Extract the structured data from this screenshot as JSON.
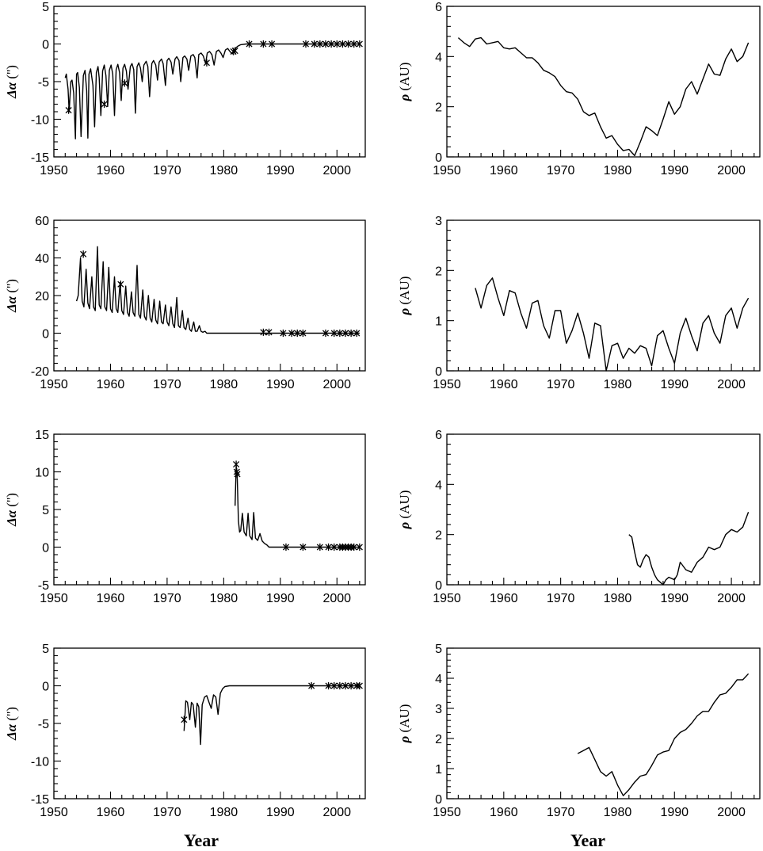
{
  "chart_data": [
    {
      "id": "p1",
      "type": "line",
      "ylabel_symbol": "Δα",
      "ylabel_unit": "('')",
      "xlim": [
        1950,
        2005
      ],
      "ylim": [
        -15,
        5
      ],
      "xticks": [
        1950,
        1960,
        1970,
        1980,
        1990,
        2000
      ],
      "yticks": [
        -15,
        -10,
        -5,
        0,
        5
      ],
      "x": [
        1952.0,
        1952.2,
        1952.5,
        1952.7,
        1953.0,
        1953.2,
        1953.5,
        1953.8,
        1954.0,
        1954.2,
        1954.5,
        1954.8,
        1955.2,
        1955.5,
        1955.8,
        1956.0,
        1956.2,
        1956.5,
        1956.9,
        1957.2,
        1957.5,
        1957.8,
        1958.0,
        1958.3,
        1958.6,
        1958.9,
        1959.2,
        1959.5,
        1959.8,
        1960.1,
        1960.4,
        1960.7,
        1961.0,
        1961.3,
        1961.6,
        1961.9,
        1962.2,
        1962.5,
        1962.8,
        1963.1,
        1963.5,
        1963.8,
        1964.1,
        1964.4,
        1964.7,
        1965.0,
        1965.3,
        1965.6,
        1965.9,
        1966.3,
        1966.6,
        1966.9,
        1967.3,
        1967.6,
        1968.0,
        1968.3,
        1968.6,
        1969.0,
        1969.3,
        1969.7,
        1970.0,
        1970.3,
        1970.7,
        1971.0,
        1971.4,
        1971.7,
        1972.1,
        1972.4,
        1972.8,
        1973.1,
        1973.5,
        1973.8,
        1974.2,
        1974.6,
        1974.9,
        1975.3,
        1975.6,
        1976.0,
        1976.4,
        1976.8,
        1977.1,
        1977.5,
        1977.9,
        1978.3,
        1978.7,
        1979.1,
        1979.5,
        1979.9,
        1980.3,
        1980.7,
        1981.1,
        1981.5,
        1982.0,
        1982.5,
        1983.0,
        1984.0,
        1986.0,
        1990.0,
        1995.0,
        2000.0,
        2004.0
      ],
      "y": [
        -4.5,
        -4.0,
        -6.0,
        -9.0,
        -5.0,
        -4.8,
        -6.5,
        -12.6,
        -4.0,
        -3.8,
        -5.8,
        -12.3,
        -4.2,
        -3.5,
        -6.2,
        -12.5,
        -4.0,
        -3.3,
        -5.5,
        -11.0,
        -3.8,
        -3.0,
        -4.5,
        -9.5,
        -3.6,
        -2.8,
        -4.2,
        -8.3,
        -3.5,
        -2.8,
        -4.0,
        -9.5,
        -3.4,
        -2.7,
        -3.8,
        -7.5,
        -3.2,
        -2.7,
        -3.6,
        -6.0,
        -3.0,
        -2.6,
        -3.4,
        -9.2,
        -3.0,
        -2.5,
        -3.2,
        -5.0,
        -2.8,
        -2.3,
        -3.0,
        -7.0,
        -2.6,
        -2.2,
        -2.8,
        -4.8,
        -2.4,
        -2.0,
        -2.6,
        -5.5,
        -2.2,
        -1.9,
        -2.4,
        -4.0,
        -2.0,
        -1.7,
        -2.2,
        -5.0,
        -1.8,
        -1.6,
        -2.0,
        -3.5,
        -1.6,
        -1.4,
        -1.8,
        -4.5,
        -1.4,
        -1.2,
        -1.6,
        -2.6,
        -1.2,
        -1.0,
        -1.4,
        -2.8,
        -1.0,
        -0.8,
        -1.2,
        -1.8,
        -0.8,
        -0.6,
        -1.0,
        -1.3,
        -0.6,
        -0.3,
        -0.1,
        0,
        0,
        0,
        0,
        0,
        0
      ],
      "markers": [
        [
          1952.6,
          -8.8
        ],
        [
          1958.9,
          -8.0
        ],
        [
          1962.5,
          -5.2
        ],
        [
          1977.0,
          -2.5
        ],
        [
          1981.7,
          -1.0
        ],
        [
          1982.0,
          -0.9
        ],
        [
          1984.5,
          0
        ],
        [
          1987.0,
          0
        ],
        [
          1988.5,
          0
        ],
        [
          1994.5,
          0
        ],
        [
          1996.0,
          0
        ],
        [
          1997.0,
          0
        ],
        [
          1998.0,
          0
        ],
        [
          1999.0,
          0
        ],
        [
          2000.0,
          0
        ],
        [
          2001.0,
          0
        ],
        [
          2002.0,
          0
        ],
        [
          2003.0,
          0
        ],
        [
          2004.0,
          0
        ]
      ]
    },
    {
      "id": "p2",
      "type": "line",
      "ylabel_symbol": "ρ",
      "ylabel_unit": "(AU)",
      "xlim": [
        1950,
        2005
      ],
      "ylim": [
        0,
        6
      ],
      "xticks": [
        1950,
        1960,
        1970,
        1980,
        1990,
        2000
      ],
      "yticks": [
        0,
        2,
        4,
        6
      ],
      "x": [
        1952.0,
        1953.0,
        1954.0,
        1955.0,
        1956.0,
        1957.0,
        1958.0,
        1959.0,
        1960.0,
        1961.0,
        1962.0,
        1963.0,
        1964.0,
        1965.0,
        1966.0,
        1967.0,
        1968.0,
        1969.0,
        1970.0,
        1971.0,
        1972.0,
        1973.0,
        1974.0,
        1975.0,
        1976.0,
        1977.0,
        1978.0,
        1979.0,
        1980.0,
        1981.0,
        1982.0,
        1983.0,
        1984.0,
        1985.0,
        1986.0,
        1987.0,
        1988.0,
        1989.0,
        1990.0,
        1991.0,
        1992.0,
        1993.0,
        1994.0,
        1995.0,
        1996.0,
        1997.0,
        1998.0,
        1999.0,
        2000.0,
        2001.0,
        2002.0,
        2003.0
      ],
      "y": [
        4.75,
        4.55,
        4.4,
        4.7,
        4.75,
        4.5,
        4.55,
        4.6,
        4.35,
        4.3,
        4.35,
        4.15,
        3.95,
        3.95,
        3.75,
        3.45,
        3.35,
        3.2,
        2.85,
        2.6,
        2.55,
        2.3,
        1.8,
        1.65,
        1.75,
        1.2,
        0.75,
        0.85,
        0.5,
        0.25,
        0.3,
        0.05,
        0.6,
        1.2,
        1.05,
        0.85,
        1.5,
        2.2,
        1.7,
        2.0,
        2.7,
        3.0,
        2.5,
        3.1,
        3.7,
        3.3,
        3.25,
        3.9,
        4.3,
        3.8,
        4.0,
        4.55
      ]
    },
    {
      "id": "p3",
      "type": "line",
      "ylabel_symbol": "Δα",
      "ylabel_unit": "('')",
      "xlim": [
        1950,
        2005
      ],
      "ylim": [
        -20,
        60
      ],
      "xticks": [
        1950,
        1960,
        1970,
        1980,
        1990,
        2000
      ],
      "yticks": [
        -20,
        0,
        20,
        40,
        60
      ],
      "x": [
        1954.0,
        1954.3,
        1954.7,
        1955.0,
        1955.3,
        1955.7,
        1956.0,
        1956.3,
        1956.7,
        1957.0,
        1957.3,
        1957.7,
        1958.0,
        1958.3,
        1958.7,
        1959.0,
        1959.3,
        1959.7,
        1960.0,
        1960.3,
        1960.7,
        1961.0,
        1961.3,
        1961.7,
        1962.0,
        1962.3,
        1962.7,
        1963.0,
        1963.3,
        1963.7,
        1964.0,
        1964.3,
        1964.7,
        1965.0,
        1965.3,
        1965.7,
        1966.0,
        1966.3,
        1966.7,
        1967.0,
        1967.3,
        1967.7,
        1968.0,
        1968.3,
        1968.7,
        1969.0,
        1969.3,
        1969.7,
        1970.0,
        1970.3,
        1970.7,
        1971.0,
        1971.3,
        1971.7,
        1972.0,
        1972.3,
        1972.7,
        1973.0,
        1973.3,
        1973.7,
        1974.0,
        1974.3,
        1974.7,
        1975.0,
        1975.3,
        1975.7,
        1976.0,
        1976.3,
        1976.7,
        1977.0,
        1980.0,
        1990.0,
        2000.0,
        2004.0
      ],
      "y": [
        17,
        20,
        40,
        17,
        14,
        34,
        16,
        13,
        30,
        14,
        12,
        46,
        15,
        13,
        38,
        14,
        12,
        35,
        13,
        11,
        30,
        13,
        11,
        27,
        12,
        10,
        25,
        11,
        9,
        22,
        11,
        9,
        36,
        10,
        8,
        23,
        9,
        7,
        20,
        8,
        6,
        18,
        7,
        5,
        17,
        6,
        5,
        15,
        6,
        4,
        14,
        5,
        3,
        19,
        4,
        3,
        12,
        3,
        2,
        8,
        2,
        1,
        6,
        1,
        1,
        4,
        1,
        0.5,
        1,
        0,
        0,
        0,
        0,
        0
      ],
      "markers": [
        [
          1955.2,
          42
        ],
        [
          1961.8,
          26
        ],
        [
          1987.0,
          0.5
        ],
        [
          1988.0,
          0.5
        ],
        [
          1990.5,
          0
        ],
        [
          1992.0,
          0
        ],
        [
          1993.0,
          0
        ],
        [
          1994.0,
          0
        ],
        [
          1998.0,
          0
        ],
        [
          1999.5,
          0
        ],
        [
          2000.5,
          0
        ],
        [
          2001.5,
          0
        ],
        [
          2002.5,
          0
        ],
        [
          2003.5,
          0
        ]
      ]
    },
    {
      "id": "p4",
      "type": "line",
      "ylabel_symbol": "ρ",
      "ylabel_unit": "(AU)",
      "xlim": [
        1950,
        2005
      ],
      "ylim": [
        0,
        3
      ],
      "xticks": [
        1950,
        1960,
        1970,
        1980,
        1990,
        2000
      ],
      "yticks": [
        0,
        1,
        2,
        3
      ],
      "x": [
        1955.0,
        1956.0,
        1957.0,
        1958.0,
        1959.0,
        1960.0,
        1961.0,
        1962.0,
        1963.0,
        1964.0,
        1965.0,
        1966.0,
        1967.0,
        1968.0,
        1969.0,
        1970.0,
        1971.0,
        1972.0,
        1973.0,
        1974.0,
        1975.0,
        1976.0,
        1977.0,
        1978.0,
        1979.0,
        1980.0,
        1981.0,
        1982.0,
        1983.0,
        1984.0,
        1985.0,
        1986.0,
        1987.0,
        1988.0,
        1989.0,
        1990.0,
        1991.0,
        1992.0,
        1993.0,
        1994.0,
        1995.0,
        1996.0,
        1997.0,
        1998.0,
        1999.0,
        2000.0,
        2001.0,
        2002.0,
        2003.0
      ],
      "y": [
        1.65,
        1.25,
        1.7,
        1.85,
        1.45,
        1.1,
        1.6,
        1.55,
        1.15,
        0.85,
        1.35,
        1.4,
        0.9,
        0.65,
        1.2,
        1.2,
        0.55,
        0.8,
        1.15,
        0.75,
        0.25,
        0.95,
        0.9,
        0.0,
        0.5,
        0.55,
        0.25,
        0.45,
        0.35,
        0.5,
        0.45,
        0.1,
        0.7,
        0.8,
        0.45,
        0.15,
        0.75,
        1.05,
        0.7,
        0.4,
        0.95,
        1.1,
        0.75,
        0.55,
        1.1,
        1.25,
        0.85,
        1.25,
        1.45
      ]
    },
    {
      "id": "p5",
      "type": "line",
      "ylabel_symbol": "Δα",
      "ylabel_unit": "('')",
      "xlim": [
        1950,
        2005
      ],
      "ylim": [
        -5,
        15
      ],
      "xticks": [
        1950,
        1960,
        1970,
        1980,
        1990,
        2000
      ],
      "yticks": [
        -5,
        0,
        5,
        10,
        15
      ],
      "x": [
        1982.0,
        1982.2,
        1982.4,
        1982.6,
        1982.8,
        1983.0,
        1983.3,
        1983.6,
        1984.0,
        1984.3,
        1984.6,
        1985.0,
        1985.3,
        1985.6,
        1986.0,
        1986.4,
        1986.8,
        1987.2,
        1987.6,
        1988.0,
        1990.0,
        1995.0,
        2000.0,
        2004.0
      ],
      "y": [
        5.5,
        10.8,
        9.0,
        3.5,
        2.0,
        2.2,
        4.5,
        2.0,
        1.5,
        4.5,
        1.5,
        1.0,
        4.6,
        1.2,
        0.9,
        1.8,
        0.8,
        0.5,
        0.3,
        0,
        0,
        0,
        0,
        0
      ],
      "markers": [
        [
          1982.2,
          11
        ],
        [
          1982.3,
          10
        ],
        [
          1982.4,
          9.7
        ],
        [
          1991.0,
          0
        ],
        [
          1994.0,
          0
        ],
        [
          1997.0,
          0
        ],
        [
          1998.5,
          0
        ],
        [
          1999.5,
          0
        ],
        [
          2000.5,
          0
        ],
        [
          2001.0,
          0
        ],
        [
          2001.5,
          0
        ],
        [
          2002.0,
          0
        ],
        [
          2002.5,
          0
        ],
        [
          2003.0,
          0
        ],
        [
          2004.0,
          0
        ]
      ]
    },
    {
      "id": "p6",
      "type": "line",
      "ylabel_symbol": "ρ",
      "ylabel_unit": "(AU)",
      "xlim": [
        1950,
        2005
      ],
      "ylim": [
        0,
        6
      ],
      "xticks": [
        1950,
        1960,
        1970,
        1980,
        1990,
        2000
      ],
      "yticks": [
        0,
        2,
        4,
        6
      ],
      "x": [
        1982.0,
        1982.5,
        1983.0,
        1983.5,
        1984.0,
        1984.5,
        1985.0,
        1985.5,
        1986.0,
        1986.5,
        1987.0,
        1987.5,
        1988.0,
        1988.5,
        1989.0,
        1990.0,
        1990.5,
        1991.0,
        1992.0,
        1993.0,
        1994.0,
        1995.0,
        1996.0,
        1997.0,
        1998.0,
        1999.0,
        2000.0,
        2001.0,
        2002.0,
        2003.0
      ],
      "y": [
        2.0,
        1.9,
        1.3,
        0.8,
        0.7,
        1.0,
        1.2,
        1.1,
        0.7,
        0.4,
        0.2,
        0.1,
        0.0,
        0.2,
        0.3,
        0.2,
        0.4,
        0.9,
        0.6,
        0.5,
        0.9,
        1.1,
        1.5,
        1.4,
        1.5,
        2.0,
        2.2,
        2.1,
        2.3,
        2.9
      ]
    },
    {
      "id": "p7",
      "type": "line",
      "ylabel_symbol": "Δα",
      "ylabel_unit": "('')",
      "xlim": [
        1950,
        2005
      ],
      "ylim": [
        -15,
        5
      ],
      "xticks": [
        1950,
        1960,
        1970,
        1980,
        1990,
        2000
      ],
      "yticks": [
        -15,
        -10,
        -5,
        0,
        5
      ],
      "x": [
        1973.0,
        1973.3,
        1973.6,
        1974.0,
        1974.3,
        1974.6,
        1975.0,
        1975.3,
        1975.6,
        1975.9,
        1976.2,
        1976.6,
        1977.0,
        1977.4,
        1977.8,
        1978.2,
        1978.6,
        1979.0,
        1979.4,
        1979.8,
        1980.2,
        1981.0,
        1985.0,
        1990.0,
        1995.0,
        2000.0,
        2004.0
      ],
      "y": [
        -6.0,
        -2.0,
        -2.2,
        -4.5,
        -2.2,
        -2.5,
        -5.5,
        -2.3,
        -2.8,
        -7.8,
        -2.5,
        -1.5,
        -1.3,
        -2.2,
        -3.0,
        -1.2,
        -1.5,
        -3.8,
        -1.0,
        -0.4,
        -0.1,
        0,
        0,
        0,
        0,
        0,
        0
      ],
      "markers": [
        [
          1973.0,
          -4.5
        ],
        [
          1995.5,
          0
        ],
        [
          1998.5,
          0
        ],
        [
          1999.5,
          0
        ],
        [
          2000.5,
          0
        ],
        [
          2001.5,
          0
        ],
        [
          2002.5,
          0
        ],
        [
          2003.5,
          0
        ],
        [
          2004.0,
          0
        ]
      ]
    },
    {
      "id": "p8",
      "type": "line",
      "ylabel_symbol": "ρ",
      "ylabel_unit": "(AU)",
      "xlim": [
        1950,
        2005
      ],
      "ylim": [
        0,
        5
      ],
      "xticks": [
        1950,
        1960,
        1970,
        1980,
        1990,
        2000
      ],
      "yticks": [
        0,
        1,
        2,
        3,
        4,
        5
      ],
      "x": [
        1973.0,
        1974.0,
        1975.0,
        1976.0,
        1977.0,
        1978.0,
        1979.0,
        1980.0,
        1981.0,
        1982.0,
        1983.0,
        1984.0,
        1985.0,
        1986.0,
        1987.0,
        1988.0,
        1989.0,
        1990.0,
        1991.0,
        1992.0,
        1993.0,
        1994.0,
        1995.0,
        1996.0,
        1997.0,
        1998.0,
        1999.0,
        2000.0,
        2001.0,
        2002.0,
        2003.0
      ],
      "y": [
        1.5,
        1.6,
        1.7,
        1.3,
        0.9,
        0.75,
        0.9,
        0.45,
        0.1,
        0.3,
        0.55,
        0.75,
        0.8,
        1.1,
        1.45,
        1.55,
        1.6,
        2.0,
        2.2,
        2.3,
        2.5,
        2.75,
        2.9,
        2.9,
        3.2,
        3.45,
        3.5,
        3.7,
        3.95,
        3.95,
        4.15
      ]
    }
  ],
  "xlabel": "Year"
}
